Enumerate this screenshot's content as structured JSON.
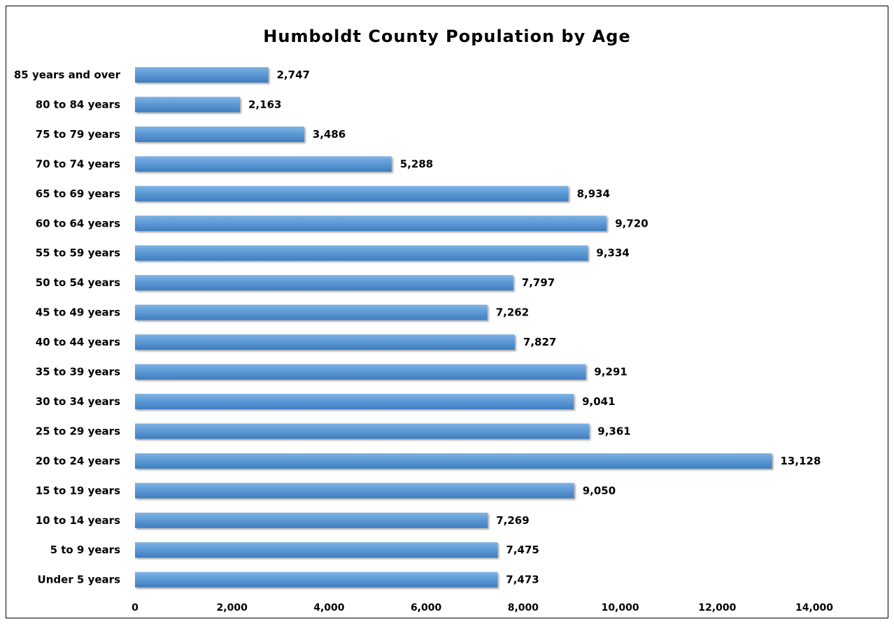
{
  "chart_data": {
    "type": "bar",
    "orientation": "horizontal",
    "title": "Humboldt County Population by Age",
    "xlabel": "",
    "ylabel": "",
    "xlim": [
      0,
      14000
    ],
    "xticks": [
      "0",
      "2,000",
      "4,000",
      "6,000",
      "8,000",
      "10,000",
      "12,000",
      "14,000"
    ],
    "grid": false,
    "legend": "none",
    "bar_color": "#5b9bd5",
    "categories": [
      "85 years and over",
      "80 to 84 years",
      "75 to 79 years",
      "70 to 74 years",
      "65 to 69 years",
      "60 to 64 years",
      "55 to 59 years",
      "50 to 54 years",
      "45 to 49 years",
      "40 to 44 years",
      "35 to 39 years",
      "30 to 34 years",
      "25 to 29 years",
      "20 to 24 years",
      "15 to 19 years",
      "10 to 14 years",
      "5 to 9 years",
      "Under 5 years"
    ],
    "values": [
      2747,
      2163,
      3486,
      5288,
      8934,
      9720,
      9334,
      7797,
      7262,
      7827,
      9291,
      9041,
      9361,
      13128,
      9050,
      7269,
      7475,
      7473
    ],
    "value_labels": [
      "2,747",
      "2,163",
      "3,486",
      "5,288",
      "8,934",
      "9,720",
      "9,334",
      "7,797",
      "7,262",
      "7,827",
      "9,291",
      "9,041",
      "9,361",
      "13,128",
      "9,050",
      "7,269",
      "7,475",
      "7,473"
    ]
  }
}
